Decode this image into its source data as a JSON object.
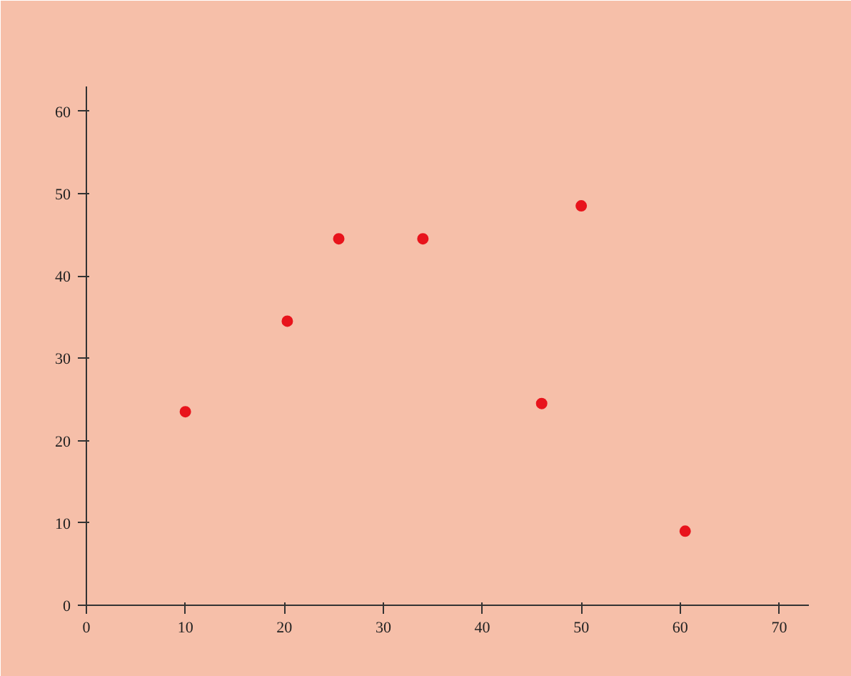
{
  "chart_data": {
    "type": "scatter",
    "x": [
      10,
      20.3,
      25.5,
      34,
      46,
      50,
      60.5
    ],
    "series": [
      {
        "color": "#e8141c",
        "values": [
          23.5,
          34.5,
          44.5,
          44.5,
          24.5,
          48.5,
          9
        ]
      }
    ],
    "xlim": [
      0,
      73
    ],
    "ylim": [
      0,
      63
    ],
    "xticks": [
      0,
      10,
      20,
      30,
      40,
      50,
      60,
      70
    ],
    "yticks": [
      0,
      10,
      20,
      30,
      40,
      50,
      60
    ],
    "grid": false,
    "marker": "circle"
  }
}
